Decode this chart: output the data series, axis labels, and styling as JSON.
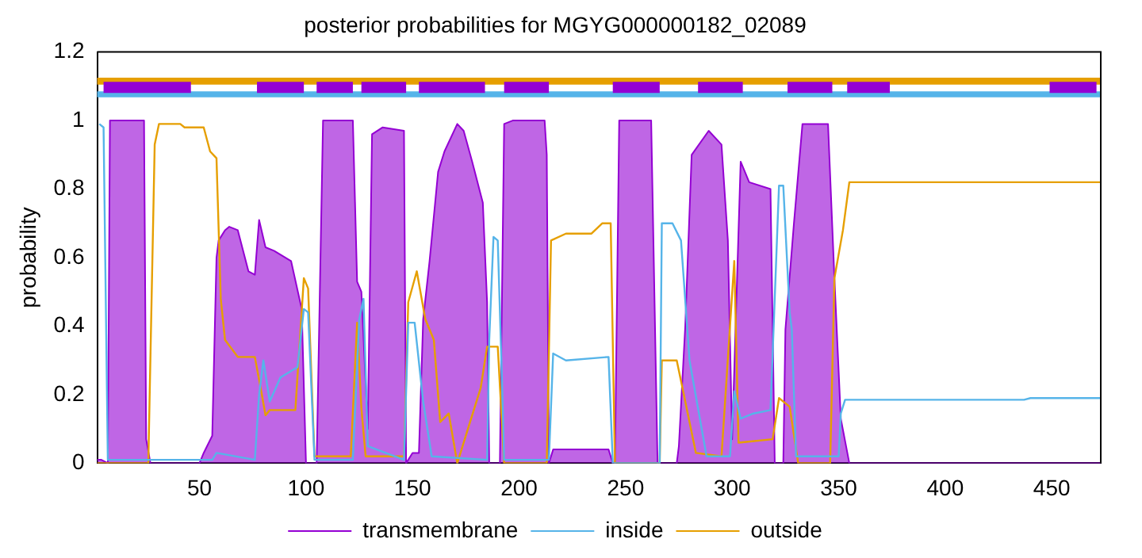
{
  "chart_data": {
    "type": "line",
    "title": "posterior probabilities for MGYG000000182_02089",
    "ylabel": "probability",
    "xlim": [
      2,
      473
    ],
    "xticks": [
      50,
      100,
      150,
      200,
      250,
      300,
      350,
      400,
      450
    ],
    "ylim": [
      0,
      1.2
    ],
    "yticks": [
      0,
      0.2,
      0.4,
      0.6,
      0.8,
      1,
      1.2
    ],
    "grid": false,
    "legend": "bottom",
    "marker": "none",
    "line_style": "solid",
    "series": [
      {
        "name": "transmembrane",
        "type": "area",
        "color": "#9400d3",
        "x": [
          2,
          4,
          7,
          8,
          24,
          25,
          27,
          50,
          52,
          56,
          58,
          59,
          62,
          64,
          68,
          73,
          76,
          78,
          81,
          85,
          93,
          98,
          100,
          105,
          108,
          122,
          124,
          126,
          129,
          131,
          136,
          146,
          147,
          150,
          153,
          155,
          158,
          162,
          165,
          171,
          174,
          178,
          183,
          185,
          186,
          191,
          193,
          197,
          212,
          213,
          214,
          216,
          242,
          244,
          245,
          247,
          262,
          265,
          274,
          275,
          278,
          281,
          289,
          295,
          298,
          300,
          304,
          308,
          318,
          320,
          324,
          325,
          329,
          333,
          345,
          348,
          351,
          355,
          473
        ],
        "values": [
          0.01,
          0.01,
          0,
          1,
          1,
          0.07,
          0,
          0,
          0.03,
          0.08,
          0.6,
          0.65,
          0.68,
          0.69,
          0.68,
          0.56,
          0.55,
          0.71,
          0.63,
          0.62,
          0.59,
          0.45,
          0,
          0,
          1,
          1,
          0.53,
          0.5,
          0.1,
          0.96,
          0.98,
          0.97,
          0,
          0.03,
          0.03,
          0.42,
          0.59,
          0.85,
          0.91,
          0.99,
          0.97,
          0.88,
          0.76,
          0.47,
          0,
          0,
          0.99,
          1,
          1,
          0.9,
          0,
          0.04,
          0.04,
          0,
          0,
          1,
          1,
          0,
          0,
          0.05,
          0.4,
          0.9,
          0.97,
          0.93,
          0.65,
          0.07,
          0.88,
          0.82,
          0.8,
          0,
          0,
          0.39,
          0.7,
          0.99,
          0.99,
          0.54,
          0.13,
          0,
          0
        ]
      },
      {
        "name": "inside",
        "color": "#56b4e9",
        "x": [
          3,
          5,
          7,
          56,
          58,
          76,
          78,
          80,
          83,
          88,
          96,
          99,
          101,
          104,
          122,
          125,
          127,
          129,
          146,
          148,
          151,
          155,
          159,
          185,
          186,
          188,
          190,
          192,
          193,
          214,
          216,
          222,
          242,
          244,
          266,
          267,
          272,
          276,
          280,
          284,
          288,
          299,
          301,
          304,
          310,
          318,
          322,
          324,
          327,
          328,
          330,
          350,
          351,
          353,
          437,
          440,
          473
        ],
        "values": [
          0.99,
          0.98,
          0.01,
          0.01,
          0.03,
          0.01,
          0.2,
          0.3,
          0.18,
          0.25,
          0.28,
          0.45,
          0.44,
          0.01,
          0.01,
          0.42,
          0.48,
          0.05,
          0.01,
          0.41,
          0.41,
          0.18,
          0.02,
          0.01,
          0.36,
          0.66,
          0.65,
          0.24,
          0.01,
          0.01,
          0.32,
          0.3,
          0.31,
          0,
          0,
          0.7,
          0.7,
          0.65,
          0.3,
          0.16,
          0.02,
          0.02,
          0.21,
          0.13,
          0.145,
          0.155,
          0.81,
          0.81,
          0.44,
          0.39,
          0.02,
          0.02,
          0.145,
          0.185,
          0.185,
          0.19,
          0.19
        ]
      },
      {
        "name": "outside",
        "color": "#e69f00",
        "x": [
          2,
          26,
          29,
          31,
          41,
          43,
          52,
          55,
          58,
          60,
          62,
          68,
          76,
          79,
          81,
          83,
          95,
          99,
          101,
          104,
          121,
          124,
          126,
          128,
          146,
          148,
          152,
          156,
          160,
          163,
          167,
          171,
          176,
          182,
          185,
          190,
          193,
          213,
          215,
          222,
          234,
          239,
          243,
          245,
          266,
          267,
          274,
          277,
          283,
          295,
          301,
          303,
          319,
          322,
          327,
          331,
          346,
          348,
          352,
          355,
          419,
          473
        ],
        "values": [
          0,
          0,
          0.93,
          0.99,
          0.99,
          0.98,
          0.98,
          0.91,
          0.89,
          0.48,
          0.36,
          0.31,
          0.31,
          0.21,
          0.14,
          0.155,
          0.155,
          0.54,
          0.51,
          0.02,
          0.02,
          0.41,
          0.16,
          0.02,
          0.02,
          0.47,
          0.56,
          0.42,
          0.36,
          0.12,
          0.145,
          0,
          0.1,
          0.22,
          0.34,
          0.34,
          0,
          0,
          0.65,
          0.67,
          0.67,
          0.7,
          0.7,
          0,
          0,
          0.3,
          0.3,
          0.21,
          0.03,
          0.02,
          0.59,
          0.06,
          0.07,
          0.19,
          0.165,
          0,
          0,
          0.54,
          0.68,
          0.82,
          0.82,
          0.82
        ]
      },
      {
        "color": "#9400d3",
        "x": [
          5,
          46
        ],
        "values": [
          1.097,
          1.097
        ]
      },
      {
        "color": "#9400d3",
        "x": [
          77,
          99
        ],
        "values": [
          1.097,
          1.097
        ]
      },
      {
        "color": "#9400d3",
        "x": [
          105,
          122
        ],
        "values": [
          1.097,
          1.097
        ]
      },
      {
        "color": "#9400d3",
        "x": [
          126,
          147
        ],
        "values": [
          1.097,
          1.097
        ]
      },
      {
        "color": "#9400d3",
        "x": [
          153,
          184
        ],
        "values": [
          1.097,
          1.097
        ]
      },
      {
        "color": "#9400d3",
        "x": [
          193,
          214
        ],
        "values": [
          1.097,
          1.097
        ]
      },
      {
        "color": "#9400d3",
        "x": [
          244,
          266
        ],
        "values": [
          1.097,
          1.097
        ]
      },
      {
        "color": "#9400d3",
        "x": [
          284,
          305
        ],
        "values": [
          1.097,
          1.097
        ]
      },
      {
        "color": "#9400d3",
        "x": [
          326,
          347
        ],
        "values": [
          1.097,
          1.097
        ]
      },
      {
        "color": "#9400d3",
        "x": [
          354,
          374
        ],
        "values": [
          1.097,
          1.097
        ]
      },
      {
        "color": "#9400d3",
        "x": [
          449,
          471
        ],
        "values": [
          1.097,
          1.097
        ]
      }
    ],
    "bands": [
      {
        "axis": "y",
        "from": 1.105,
        "to": 1.125,
        "color": "#e69f00"
      },
      {
        "axis": "y",
        "from": 1.068,
        "to": 1.085,
        "color": "#56b4e9"
      }
    ]
  }
}
